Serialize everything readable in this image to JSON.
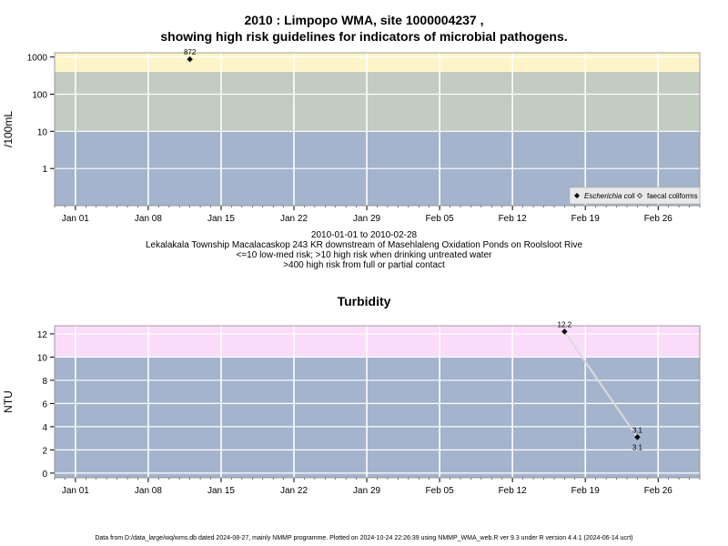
{
  "header": {
    "title_line1": "2010 : Limpopo WMA, site 1000004237 ,",
    "title_line2": "showing high risk guidelines for indicators of microbial pathogens."
  },
  "captions": {
    "line1": "2010-01-01 to 2010-02-28",
    "line2": "Lekalakala Township Macalacaskop 243 KR downstream of Masehlaleng Oxidation Ponds on Roolsloot Rive",
    "line3": "<=10 low-med risk; >10 high risk when drinking untreated water",
    "line4": ">400 high risk from full or partial contact"
  },
  "footer": {
    "text": "Data from D:/data_large/wq/wms.db dated 2024-08-27, mainly NMMP programme. Plotted on 2024-10-24 22:26:39 using NMMP_WMA_web.R ver 9.3 under R version 4.4.1 (2024-06-14 ucrt)"
  },
  "colors": {
    "band_low": "#a3b4cc",
    "band_mid": "#c2ccc0",
    "band_high": "#fdf5c8",
    "band_turb_high": "#fadcfa",
    "grid": "#ffffff",
    "series": "#000000"
  },
  "chart_data": [
    {
      "type": "scatter",
      "title": "",
      "ylabel": "/100mL",
      "y_scale": "log",
      "yticks": [
        "1",
        "10",
        "100",
        "1000"
      ],
      "xticks": [
        "Jan 01",
        "Jan 08",
        "Jan 15",
        "Jan 22",
        "Jan 29",
        "Feb 05",
        "Feb 12",
        "Feb 19",
        "Feb 26"
      ],
      "xlim": [
        "2009-12-30",
        "2010-03-02"
      ],
      "ylim": [
        0.1,
        1300
      ],
      "bands": [
        {
          "from": 0.1,
          "to": 10,
          "color": "#a3b4cc"
        },
        {
          "from": 10,
          "to": 400,
          "color": "#c2ccc0"
        },
        {
          "from": 400,
          "to": 1300,
          "color": "#fdf5c8"
        }
      ],
      "legend": {
        "position": "bottom-right",
        "entries": [
          "Escherichia coli",
          "faecal coliforms"
        ]
      },
      "series": [
        {
          "name": "Escherichia coli",
          "points": [
            {
              "x": "2010-01-12",
              "y": 872,
              "label": "872"
            }
          ]
        },
        {
          "name": "faecal coliforms",
          "points": []
        }
      ]
    },
    {
      "type": "line",
      "title": "Turbidity",
      "ylabel": "NTU",
      "yticks": [
        "0",
        "2",
        "4",
        "6",
        "8",
        "10",
        "12"
      ],
      "xticks": [
        "Jan 01",
        "Jan 08",
        "Jan 15",
        "Jan 22",
        "Jan 29",
        "Feb 05",
        "Feb 12",
        "Feb 19",
        "Feb 26"
      ],
      "xlim": [
        "2009-12-30",
        "2010-03-02"
      ],
      "ylim": [
        -0.4,
        12.7
      ],
      "bands": [
        {
          "from": -0.4,
          "to": 10,
          "color": "#a3b4cc"
        },
        {
          "from": 10,
          "to": 12.7,
          "color": "#fadcfa"
        }
      ],
      "series": [
        {
          "name": "",
          "points": [
            {
              "x": "2010-02-17",
              "y": 12.2,
              "label": "12.2"
            },
            {
              "x": "2010-02-24",
              "y": 3.1,
              "label": "3.1",
              "label_below": "3.1"
            }
          ]
        }
      ]
    }
  ]
}
